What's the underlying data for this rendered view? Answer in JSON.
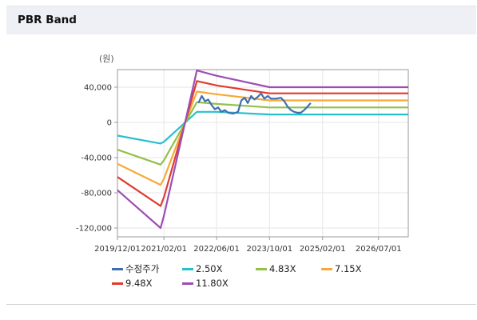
{
  "panel": {
    "title": "PBR Band"
  },
  "chart_data": {
    "type": "line",
    "unit_label": "(원)",
    "ylim": [
      -130000,
      60000
    ],
    "yticks": [
      40000,
      0,
      -40000,
      -80000,
      -120000
    ],
    "ytick_labels": [
      "40,000",
      "0",
      "-40,000",
      "-80,000",
      "-120,000"
    ],
    "xlim": [
      "2019-12-01",
      "2027-04-01"
    ],
    "xticks": [
      "2019-12-01",
      "2021-02-01",
      "2022-06-01",
      "2023-10-01",
      "2025-02-01",
      "2026-07-01"
    ],
    "xtick_labels": [
      "2019/12/01",
      "2021/02/01",
      "2022/06/01",
      "2023/10/01",
      "2025/02/01",
      "2026/07/01"
    ],
    "grid": true,
    "legend_position": "bottom",
    "series": [
      {
        "name": "수정주가",
        "color": "#3f6fb0",
        "points": [
          [
            "2021-12-15",
            22000
          ],
          [
            "2022-01-15",
            30000
          ],
          [
            "2022-02-15",
            24000
          ],
          [
            "2022-03-15",
            26000
          ],
          [
            "2022-04-15",
            20000
          ],
          [
            "2022-05-15",
            15000
          ],
          [
            "2022-06-15",
            17000
          ],
          [
            "2022-07-15",
            12000
          ],
          [
            "2022-08-15",
            14000
          ],
          [
            "2022-09-15",
            11000
          ],
          [
            "2022-11-01",
            10000
          ],
          [
            "2022-12-15",
            12000
          ],
          [
            "2023-01-15",
            25000
          ],
          [
            "2023-02-15",
            28000
          ],
          [
            "2023-03-15",
            22000
          ],
          [
            "2023-04-15",
            30000
          ],
          [
            "2023-05-15",
            26000
          ],
          [
            "2023-06-15",
            29000
          ],
          [
            "2023-07-15",
            33000
          ],
          [
            "2023-08-15",
            27000
          ],
          [
            "2023-09-15",
            30000
          ],
          [
            "2023-10-15",
            27000
          ],
          [
            "2023-12-01",
            27000
          ],
          [
            "2024-01-15",
            28000
          ],
          [
            "2024-02-15",
            24000
          ],
          [
            "2024-03-15",
            18000
          ],
          [
            "2024-04-15",
            14000
          ],
          [
            "2024-05-15",
            12000
          ],
          [
            "2024-06-15",
            11000
          ],
          [
            "2024-07-15",
            11000
          ],
          [
            "2024-08-15",
            14000
          ],
          [
            "2024-09-15",
            18000
          ],
          [
            "2024-10-15",
            22000
          ]
        ]
      },
      {
        "name": "2.50X",
        "color": "#27c1c9",
        "points": [
          [
            "2019-12-01",
            -15000
          ],
          [
            "2021-01-01",
            -24000
          ],
          [
            "2021-02-01",
            -22000
          ],
          [
            "2021-12-01",
            12000
          ],
          [
            "2022-06-01",
            12000
          ],
          [
            "2023-10-01",
            9000
          ],
          [
            "2027-04-01",
            9000
          ]
        ]
      },
      {
        "name": "4.83X",
        "color": "#92c14a",
        "points": [
          [
            "2019-12-01",
            -31000
          ],
          [
            "2021-01-01",
            -48000
          ],
          [
            "2021-02-01",
            -43000
          ],
          [
            "2021-12-01",
            23000
          ],
          [
            "2022-06-01",
            21000
          ],
          [
            "2023-10-01",
            17000
          ],
          [
            "2027-04-01",
            17000
          ]
        ]
      },
      {
        "name": "7.15X",
        "color": "#f5a93a",
        "points": [
          [
            "2019-12-01",
            -47000
          ],
          [
            "2021-01-01",
            -71000
          ],
          [
            "2021-02-01",
            -64000
          ],
          [
            "2021-12-01",
            35000
          ],
          [
            "2022-06-01",
            32000
          ],
          [
            "2023-10-01",
            25000
          ],
          [
            "2027-04-01",
            25000
          ]
        ]
      },
      {
        "name": "9.48X",
        "color": "#e23a2c",
        "points": [
          [
            "2019-12-01",
            -62000
          ],
          [
            "2021-01-01",
            -95000
          ],
          [
            "2021-02-01",
            -85000
          ],
          [
            "2021-12-01",
            47000
          ],
          [
            "2022-06-01",
            42000
          ],
          [
            "2023-10-01",
            33000
          ],
          [
            "2027-04-01",
            33000
          ]
        ]
      },
      {
        "name": "11.80X",
        "color": "#9b4fb3",
        "points": [
          [
            "2019-12-01",
            -77000
          ],
          [
            "2021-01-01",
            -120000
          ],
          [
            "2021-02-01",
            -106000
          ],
          [
            "2021-12-01",
            59000
          ],
          [
            "2022-06-01",
            53000
          ],
          [
            "2023-10-01",
            40000
          ],
          [
            "2027-04-01",
            40000
          ]
        ]
      }
    ]
  }
}
